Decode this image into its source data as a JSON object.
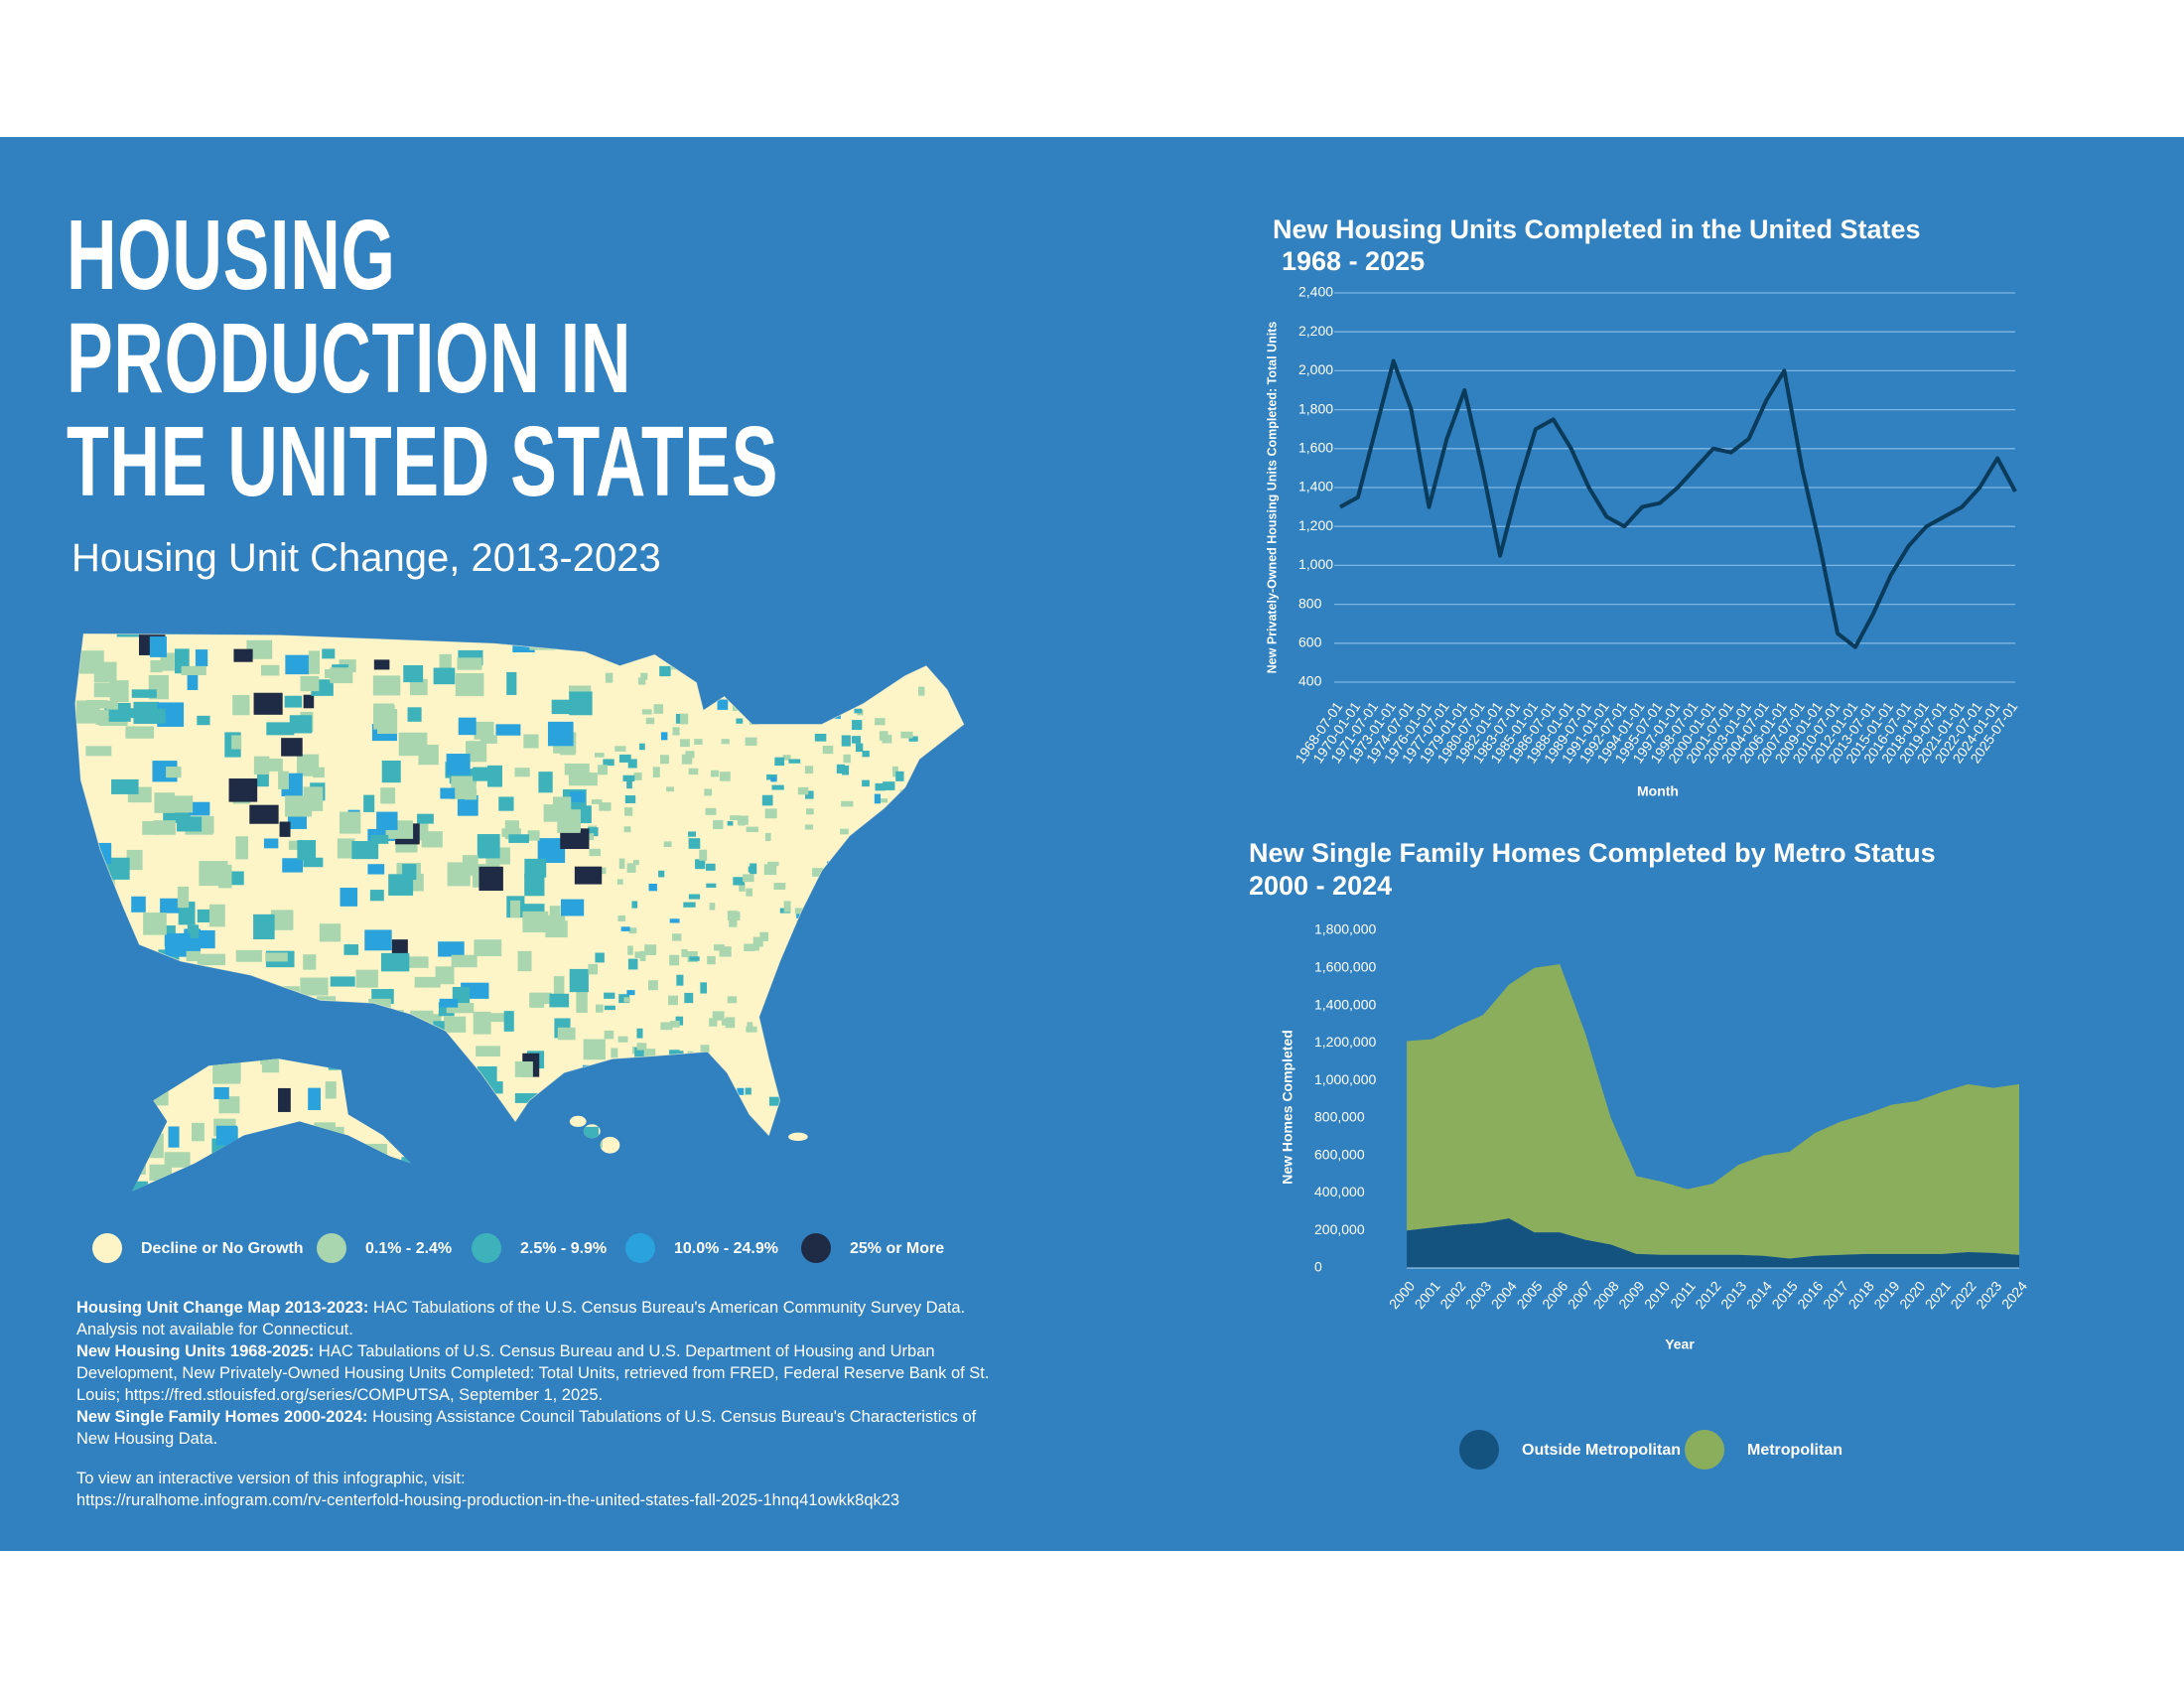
{
  "header": {
    "title_lines": [
      "HOUSING",
      "PRODUCTION IN",
      "THE UNITED STATES"
    ],
    "subtitle": "Housing Unit Change, 2013-2023"
  },
  "map_legend": [
    {
      "label": "Decline or No Growth",
      "color": "#fdf5c8"
    },
    {
      "label": "0.1% - 2.4%",
      "color": "#a9d6ae"
    },
    {
      "label": "2.5% - 9.9%",
      "color": "#3eb2bb"
    },
    {
      "label": "10.0% - 24.9%",
      "color": "#2aa3dd"
    },
    {
      "label": "25% or More",
      "color": "#1f2b45"
    }
  ],
  "sources": [
    {
      "label": "Housing Unit Change Map 2013-2023:",
      "text": "HAC Tabulations of the U.S. Census Bureau's American Community Survey Data. Analysis not available for Connecticut."
    },
    {
      "label": "New Housing Units 1968-2025:",
      "text": "HAC Tabulations of U.S. Census Bureau and U.S. Department of Housing and Urban Development, New Privately-Owned Housing Units Completed: Total Units, retrieved from FRED, Federal Reserve Bank of St. Louis; https://fred.stlouisfed.org/series/COMPUTSA, September 1, 2025."
    },
    {
      "label": "New Single Family Homes 2000-2024:",
      "text": "Housing Assistance Council Tabulations of U.S. Census Bureau's Characteristics of New Housing Data."
    }
  ],
  "link": {
    "text": "To view an interactive version of this infographic, visit:",
    "url": "https://ruralhome.infogram.com/rv-centerfold-housing-production-in-the-united-states-fall-2025-1hnq41owkk8qk23"
  },
  "chart_data": [
    {
      "type": "line",
      "title": "New Housing Units Completed in the United States",
      "subtitle": "1968 - 2025",
      "x_label": "Month",
      "y_label": "New Privately-Owned Housing Units Completed: Total Units",
      "categories": [
        "1968-07-01",
        "1970-01-01",
        "1971-07-01",
        "1973-01-01",
        "1974-07-01",
        "1976-01-01",
        "1977-07-01",
        "1979-01-01",
        "1980-07-01",
        "1982-01-01",
        "1983-07-01",
        "1985-01-01",
        "1986-07-01",
        "1988-01-01",
        "1989-07-01",
        "1991-01-01",
        "1992-07-01",
        "1994-01-01",
        "1995-07-01",
        "1997-01-01",
        "1998-07-01",
        "2000-01-01",
        "2001-07-01",
        "2003-01-01",
        "2004-07-01",
        "2006-01-01",
        "2007-07-01",
        "2009-01-01",
        "2010-07-01",
        "2012-01-01",
        "2013-07-01",
        "2015-01-01",
        "2016-07-01",
        "2018-01-01",
        "2019-07-01",
        "2021-01-01",
        "2022-07-01",
        "2024-01-01",
        "2025-07-01"
      ],
      "values": [
        1300,
        1350,
        1700,
        2050,
        1800,
        1300,
        1650,
        1900,
        1500,
        1050,
        1400,
        1700,
        1750,
        1600,
        1400,
        1250,
        1200,
        1300,
        1320,
        1400,
        1500,
        1600,
        1580,
        1650,
        1850,
        2000,
        1500,
        1100,
        650,
        580,
        750,
        950,
        1100,
        1200,
        1250,
        1300,
        1400,
        1550,
        1380
      ],
      "color": "#0b3b5a",
      "ylim": [
        400,
        2400
      ],
      "yticks": [
        400,
        600,
        800,
        {
          "value": 1000,
          "label": "1,000"
        },
        {
          "value": 1200,
          "label": "1,200"
        },
        {
          "value": 1400,
          "label": "1,400"
        },
        {
          "value": 1600,
          "label": "1,600"
        },
        {
          "value": 1800,
          "label": "1,800"
        },
        {
          "value": 2000,
          "label": "2,000"
        },
        {
          "value": 2200,
          "label": "2,200"
        },
        {
          "value": 2400,
          "label": "2,400"
        }
      ],
      "grid": true
    },
    {
      "type": "stacked_area",
      "title": "New Single Family Homes Completed by Metro Status",
      "subtitle": "2000 - 2024",
      "x_label": "Year",
      "y_label": "New Homes Completed",
      "categories": [
        "2000",
        "2001",
        "2002",
        "2003",
        "2004",
        "2005",
        "2006",
        "2007",
        "2008",
        "2009",
        "2010",
        "2011",
        "2012",
        "2013",
        "2014",
        "2015",
        "2016",
        "2017",
        "2018",
        "2019",
        "2020",
        "2021",
        "2022",
        "2023",
        "2024"
      ],
      "series": [
        {
          "name": "Outside Metropolitan",
          "color": "#14527f",
          "values": [
            200000,
            215000,
            230000,
            240000,
            265000,
            190000,
            190000,
            150000,
            125000,
            75000,
            70000,
            70000,
            70000,
            70000,
            65000,
            50000,
            65000,
            70000,
            75000,
            75000,
            75000,
            75000,
            85000,
            80000,
            70000
          ]
        },
        {
          "name": "Metropolitan",
          "color": "#8aae5c",
          "values": [
            1010000,
            1005000,
            1060000,
            1110000,
            1245000,
            1410000,
            1430000,
            1100000,
            675000,
            415000,
            390000,
            350000,
            380000,
            480000,
            535000,
            570000,
            655000,
            710000,
            745000,
            795000,
            815000,
            865000,
            895000,
            880000,
            910000
          ]
        }
      ],
      "ylim": [
        0,
        1800000
      ],
      "yticks": [
        0,
        {
          "value": 200000,
          "label": "200,000"
        },
        {
          "value": 400000,
          "label": "400,000"
        },
        {
          "value": 600000,
          "label": "600,000"
        },
        {
          "value": 800000,
          "label": "800,000"
        },
        {
          "value": 1000000,
          "label": "1,000,000"
        },
        {
          "value": 1200000,
          "label": "1,200,000"
        },
        {
          "value": 1400000,
          "label": "1,400,000"
        },
        {
          "value": 1600000,
          "label": "1,600,000"
        },
        {
          "value": 1800000,
          "label": "1,800,000"
        }
      ],
      "grid": false
    }
  ]
}
